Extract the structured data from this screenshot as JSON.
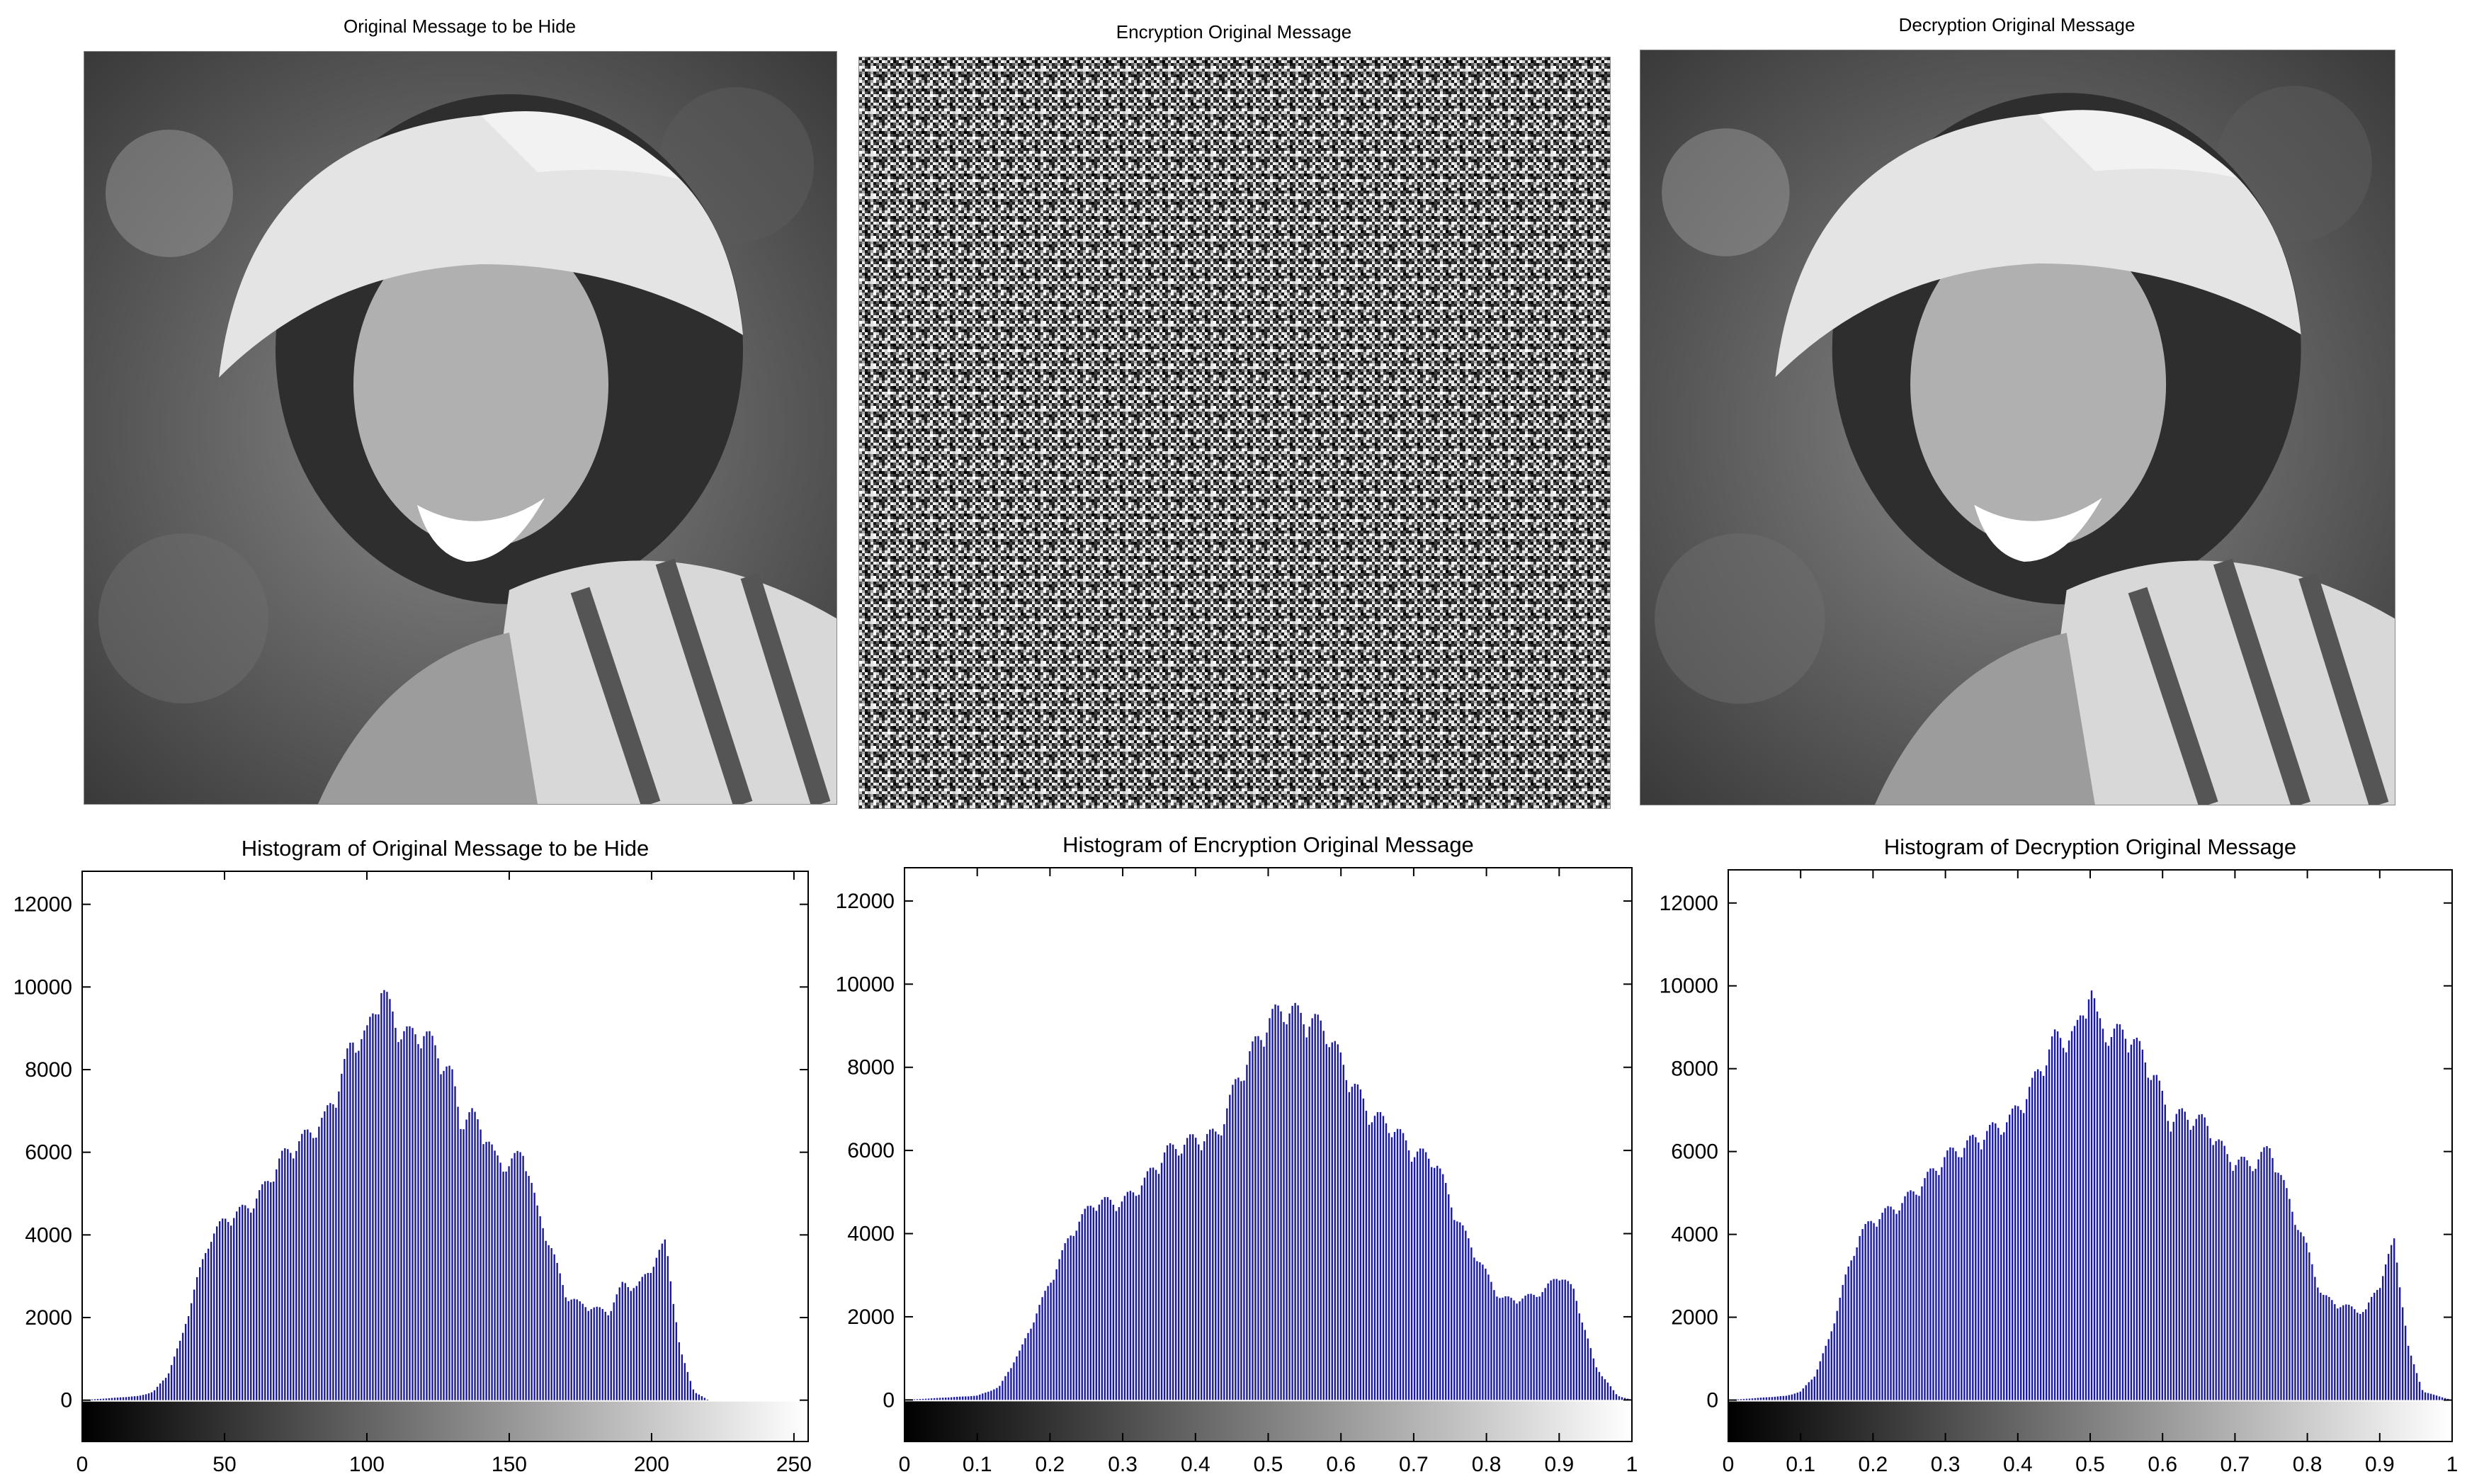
{
  "panels": [
    {
      "title": "Original Message to be Hide"
    },
    {
      "title": "Encryption Original Message"
    },
    {
      "title": "Decryption Original Message"
    }
  ],
  "colors": {
    "bar": "#1a1aa6",
    "axis": "#000000",
    "background": "#ffffff"
  },
  "chart_data": [
    {
      "type": "bar",
      "title": "Histogram of Original Message to be Hide",
      "xlim": [
        0,
        255
      ],
      "ylim": [
        -1000,
        12800
      ],
      "xticks": [
        0,
        50,
        100,
        150,
        200,
        250
      ],
      "xtick_labels": [
        "0",
        "50",
        "100",
        "150",
        "200",
        "250"
      ],
      "yticks": [
        0,
        2000,
        4000,
        6000,
        8000,
        10000,
        12000
      ],
      "ytick_labels": [
        "0",
        "2000",
        "4000",
        "6000",
        "8000",
        "10000",
        "12000"
      ],
      "colorbar": "grayscale",
      "grid": false,
      "x": [
        0,
        10,
        20,
        25,
        30,
        35,
        40,
        45,
        50,
        55,
        60,
        65,
        70,
        75,
        80,
        85,
        90,
        95,
        100,
        105,
        110,
        115,
        120,
        125,
        130,
        133,
        137,
        140,
        145,
        150,
        155,
        160,
        165,
        170,
        175,
        180,
        185,
        190,
        195,
        200,
        205,
        210,
        215,
        220,
        225,
        230,
        235,
        240,
        245,
        250,
        255
      ],
      "values": [
        0,
        50,
        100,
        200,
        600,
        1500,
        2800,
        3900,
        4300,
        4500,
        4700,
        5200,
        5800,
        6100,
        6400,
        6700,
        7500,
        8600,
        8700,
        9900,
        9000,
        8700,
        8800,
        8300,
        7700,
        6700,
        6800,
        6600,
        5800,
        5600,
        6000,
        4500,
        3600,
        2500,
        2300,
        2200,
        2100,
        2800,
        2700,
        3200,
        3800,
        1200,
        200,
        0,
        0,
        0,
        0,
        0,
        0,
        0,
        0
      ]
    },
    {
      "type": "bar",
      "title": "Histogram of Encryption Original Message",
      "xlim": [
        0,
        1
      ],
      "ylim": [
        -1000,
        12800
      ],
      "xticks": [
        0,
        0.1,
        0.2,
        0.3,
        0.4,
        0.5,
        0.6,
        0.7,
        0.8,
        0.9,
        1
      ],
      "xtick_labels": [
        "0",
        "0.1",
        "0.2",
        "0.3",
        "0.4",
        "0.5",
        "0.6",
        "0.7",
        "0.8",
        "0.9",
        "1"
      ],
      "yticks": [
        0,
        2000,
        4000,
        6000,
        8000,
        10000,
        12000
      ],
      "ytick_labels": [
        "0",
        "2000",
        "4000",
        "6000",
        "8000",
        "10000",
        "12000"
      ],
      "colorbar": "grayscale",
      "grid": false,
      "x": [
        0,
        0.05,
        0.1,
        0.13,
        0.16,
        0.2,
        0.23,
        0.26,
        0.3,
        0.33,
        0.36,
        0.4,
        0.43,
        0.46,
        0.5,
        0.52,
        0.55,
        0.58,
        0.61,
        0.64,
        0.67,
        0.7,
        0.73,
        0.76,
        0.79,
        0.82,
        0.85,
        0.88,
        0.9,
        0.92,
        0.95,
        0.98,
        1
      ],
      "values": [
        0,
        50,
        100,
        300,
        1200,
        2800,
        4000,
        4700,
        4700,
        5200,
        5900,
        6200,
        6300,
        7700,
        9000,
        9300,
        9100,
        8800,
        7700,
        6800,
        6500,
        5900,
        5700,
        4300,
        3300,
        2400,
        2400,
        2600,
        3000,
        2600,
        800,
        100,
        0
      ]
    },
    {
      "type": "bar",
      "title": "Histogram of Decryption Original Message",
      "xlim": [
        0,
        1
      ],
      "ylim": [
        -1000,
        12800
      ],
      "xticks": [
        0,
        0.1,
        0.2,
        0.3,
        0.4,
        0.5,
        0.6,
        0.7,
        0.8,
        0.9,
        1
      ],
      "xtick_labels": [
        "0",
        "0.1",
        "0.2",
        "0.3",
        "0.4",
        "0.5",
        "0.6",
        "0.7",
        "0.8",
        "0.9",
        "1"
      ],
      "yticks": [
        0,
        2000,
        4000,
        6000,
        8000,
        10000,
        12000
      ],
      "ytick_labels": [
        "0",
        "2000",
        "4000",
        "6000",
        "8000",
        "10000",
        "12000"
      ],
      "colorbar": "grayscale",
      "grid": false,
      "x": [
        0,
        0.04,
        0.08,
        0.1,
        0.12,
        0.14,
        0.16,
        0.18,
        0.2,
        0.22,
        0.24,
        0.27,
        0.3,
        0.33,
        0.36,
        0.39,
        0.42,
        0.45,
        0.48,
        0.5,
        0.51,
        0.53,
        0.55,
        0.57,
        0.59,
        0.61,
        0.63,
        0.66,
        0.69,
        0.72,
        0.75,
        0.78,
        0.8,
        0.82,
        0.84,
        0.86,
        0.88,
        0.9,
        0.92,
        0.94,
        0.96,
        1
      ],
      "values": [
        0,
        50,
        100,
        200,
        600,
        1500,
        2800,
        3900,
        4300,
        4500,
        4700,
        5200,
        5800,
        6100,
        6400,
        6700,
        7500,
        8600,
        8700,
        9900,
        9000,
        8700,
        8800,
        8300,
        7700,
        6700,
        6800,
        6600,
        5800,
        5600,
        6000,
        4500,
        3600,
        2500,
        2300,
        2200,
        2100,
        2800,
        3800,
        1200,
        200,
        0
      ]
    }
  ]
}
